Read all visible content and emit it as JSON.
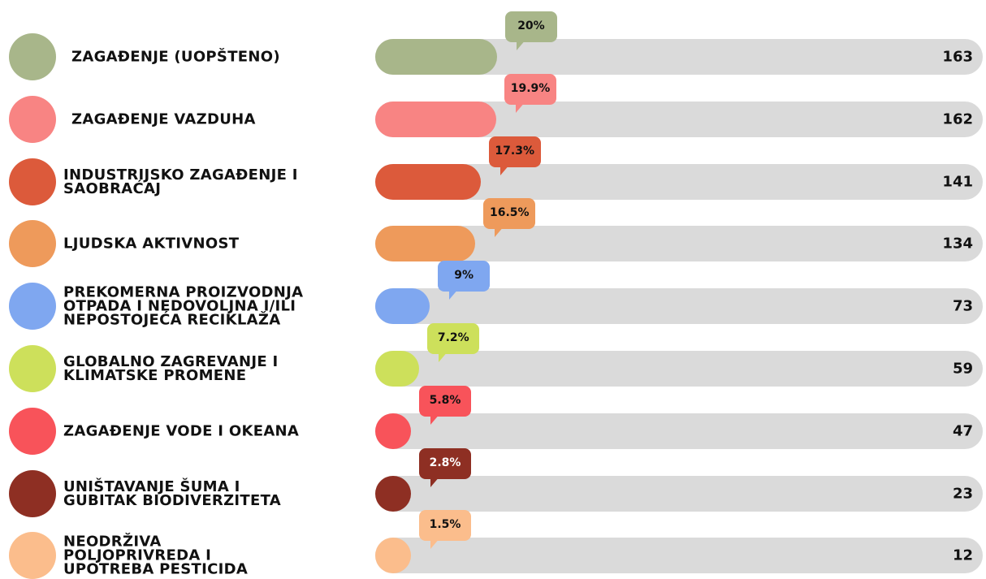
{
  "chart_data": {
    "type": "bar",
    "orientation": "horizontal",
    "categories": [
      "ZAGAĐENJE (UOPŠTENO)",
      "ZAGAĐENJE VAZDUHA",
      "INDUSTRIJSKO ZAGAĐENJE I\nSAOBRAĆAJ",
      "LJUDSKA AKTIVNOST",
      "PREKOMERNA PROIZVODNJA\nOTPADA I NEDOVOLJNA I/ILI\nNEPOSTOJEĆA RECIKLAŽA",
      "GLOBALNO ZAGREVANJE I\nKLIMATSKE PROMENE",
      "ZAGAĐENJE VODE I OKEANA",
      "UNIŠTAVANJE ŠUMA I\nGUBITAK BIODIVERZITETA",
      "NEODRŽIVA\nPOLJOPRIVREDA I\nUPOTREBA PESTICIDA"
    ],
    "values": [
      163,
      162,
      141,
      134,
      73,
      59,
      47,
      23,
      12
    ],
    "shares": [
      20,
      19.9,
      17.3,
      16.5,
      9,
      7.2,
      5.8,
      2.8,
      1.5
    ],
    "share_labels": [
      "20%",
      "19.9%",
      "17.3%",
      "16.5%",
      "9%",
      "7.2%",
      "5.8%",
      "2.8%",
      "1.5%"
    ],
    "colors": [
      "#a8b68a",
      "#f88483",
      "#dc5a3b",
      "#ee9a5b",
      "#7fa7f0",
      "#cde05b",
      "#f8535a",
      "#8e2f23",
      "#fbbd8c"
    ],
    "track_color": "#dadada"
  }
}
